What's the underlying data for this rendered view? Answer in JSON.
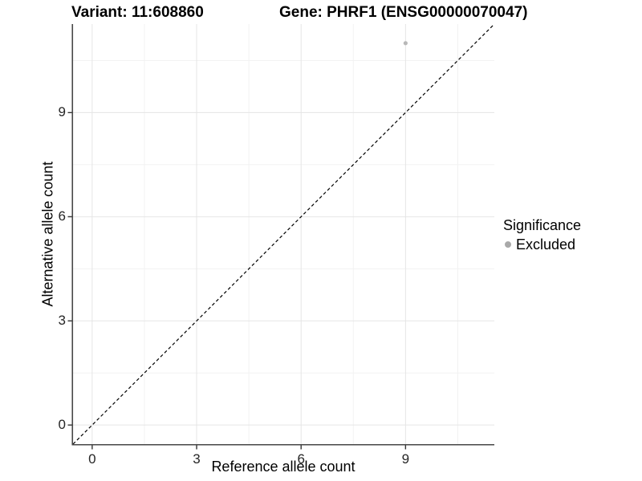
{
  "header": {
    "title_left": "Variant: 11:608860",
    "title_right": "Gene: PHRF1 (ENSG00000070047)"
  },
  "chart_data": {
    "type": "scatter",
    "title": "Variant: 11:608860   Gene: PHRF1 (ENSG00000070047)",
    "xlabel": "Reference allele count",
    "ylabel": "Alternative allele count",
    "xlim": [
      -0.55,
      11.55
    ],
    "ylim": [
      -0.55,
      11.55
    ],
    "x_major_ticks": [
      0,
      3,
      6,
      9
    ],
    "y_major_ticks": [
      0,
      3,
      6,
      9
    ],
    "x_minor_ticks": [
      1.5,
      4.5,
      7.5,
      10.5
    ],
    "y_minor_ticks": [
      1.5,
      4.5,
      7.5,
      10.5
    ],
    "grid": "major+minor",
    "series": [
      {
        "name": "Excluded",
        "points": [
          {
            "x": 9,
            "y": 11
          }
        ],
        "color": "#b8b8b8"
      }
    ],
    "reference_line": {
      "type": "identity",
      "style": "dashed",
      "color": "#000000",
      "from": [
        -0.55,
        -0.55
      ],
      "to": [
        11.55,
        11.55
      ]
    },
    "legend": {
      "title": "Significance",
      "position": "right",
      "items": [
        {
          "label": "Excluded",
          "color": "#a9a9a9"
        }
      ]
    }
  },
  "colors": {
    "background": "#ffffff",
    "grid_major": "#e5e5e5",
    "grid_minor": "#f2f2f2",
    "axis_line": "#474747",
    "tick_mark": "#333333",
    "point": "#b8b8b8",
    "reference_line": "#000000"
  }
}
